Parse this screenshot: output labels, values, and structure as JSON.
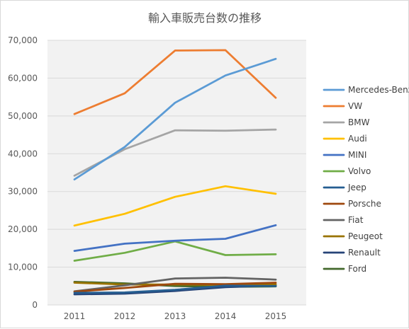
{
  "chart_data": {
    "type": "line",
    "title": "輸入車販売台数の推移",
    "xlabel": "",
    "ylabel": "",
    "categories": [
      "2011",
      "2012",
      "2013",
      "2014",
      "2015"
    ],
    "ylim": [
      0,
      70000
    ],
    "yticks": [
      0,
      10000,
      20000,
      30000,
      40000,
      50000,
      60000,
      70000
    ],
    "ytick_labels": [
      "0",
      "10,000",
      "20,000",
      "30,000",
      "40,000",
      "50,000",
      "60,000",
      "70,000"
    ],
    "grid": true,
    "legend_position": "right",
    "plot_background": "#f2f2f2",
    "series": [
      {
        "name": "Mercedes-Benz",
        "color": "#5b9bd5",
        "values": [
          33200,
          41800,
          53500,
          60700,
          65100
        ]
      },
      {
        "name": "VW",
        "color": "#ed7d31",
        "values": [
          50500,
          56000,
          67300,
          67400,
          54800
        ]
      },
      {
        "name": "BMW",
        "color": "#a5a5a5",
        "values": [
          34200,
          41200,
          46200,
          46100,
          46400
        ]
      },
      {
        "name": "Audi",
        "color": "#ffc000",
        "values": [
          21000,
          24100,
          28600,
          31400,
          29400
        ]
      },
      {
        "name": "MINI",
        "color": "#4472c4",
        "values": [
          14300,
          16200,
          17000,
          17500,
          21100
        ]
      },
      {
        "name": "Volvo",
        "color": "#70ad47",
        "values": [
          11700,
          13800,
          16800,
          13200,
          13400
        ]
      },
      {
        "name": "Jeep",
        "color": "#255e91",
        "values": [
          3200,
          3300,
          4000,
          5100,
          5000
        ]
      },
      {
        "name": "Porsche",
        "color": "#9e480e",
        "values": [
          3500,
          4500,
          5600,
          5500,
          5900
        ]
      },
      {
        "name": "Fiat",
        "color": "#636363",
        "values": [
          3600,
          5200,
          7000,
          7200,
          6700
        ]
      },
      {
        "name": "Peugeot",
        "color": "#997300",
        "values": [
          5900,
          5400,
          5400,
          5300,
          5500
        ]
      },
      {
        "name": "Renault",
        "color": "#264478",
        "values": [
          2800,
          3000,
          3700,
          4700,
          5200
        ]
      },
      {
        "name": "Ford",
        "color": "#43682b",
        "values": [
          6100,
          5700,
          5000,
          4800,
          4900
        ]
      }
    ]
  }
}
